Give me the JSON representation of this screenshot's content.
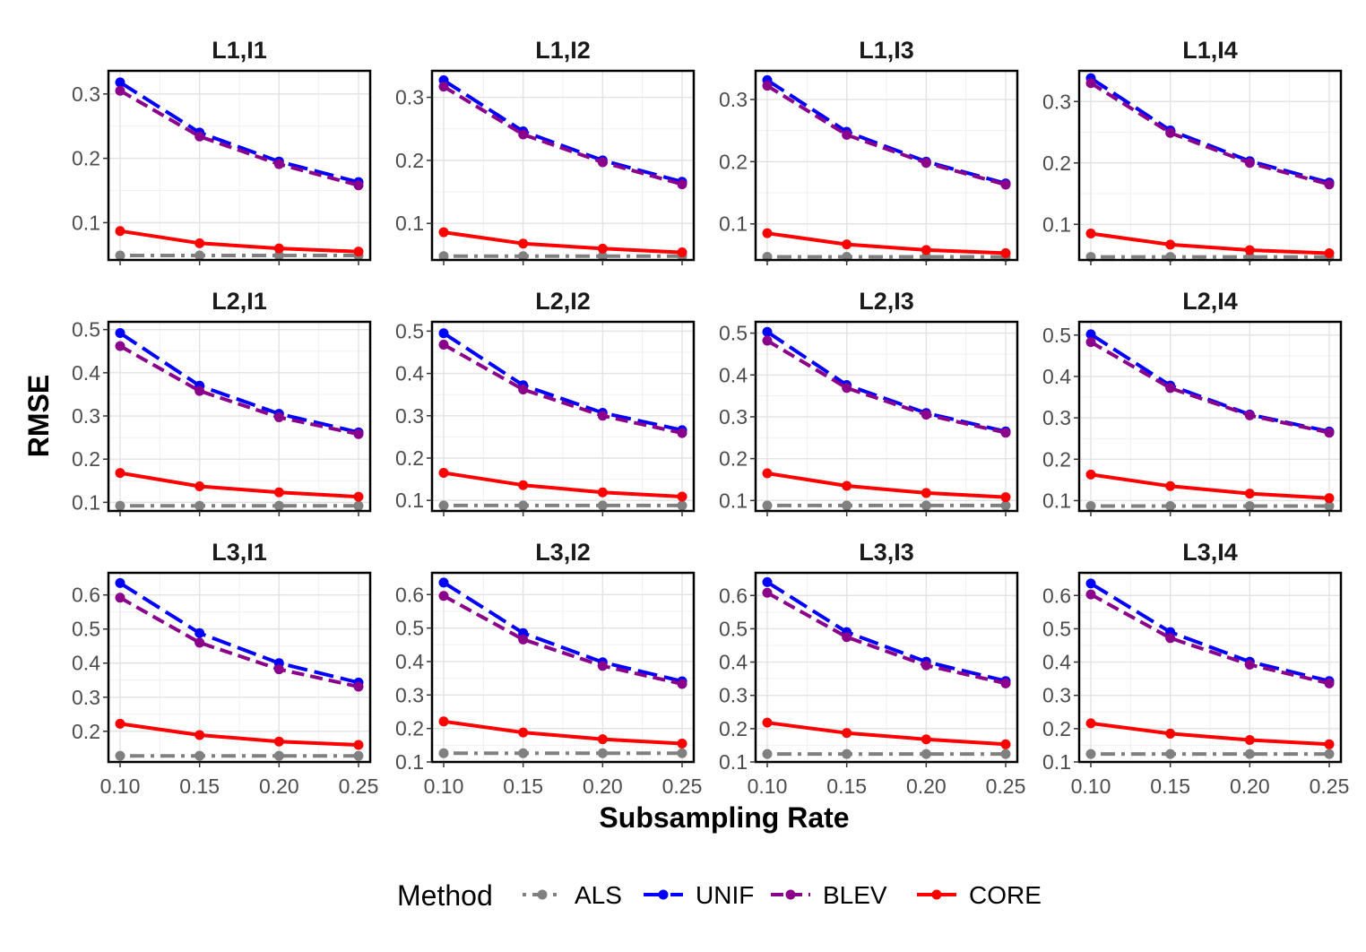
{
  "chart_data": {
    "type": "line",
    "xlabel": "Subsampling Rate",
    "ylabel": "RMSE",
    "x": [
      0.1,
      0.15,
      0.2,
      0.25
    ],
    "x_tick_labels": [
      "0.10",
      "0.15",
      "0.20",
      "0.25"
    ],
    "legend": {
      "title": "Method",
      "position": "bottom",
      "entries": [
        "ALS",
        "UNIF",
        "BLEV",
        "CORE"
      ]
    },
    "series_styles": [
      {
        "name": "ALS",
        "color": "#808080",
        "dash": "dot-dash"
      },
      {
        "name": "UNIF",
        "color": "#0000ff",
        "dash": "long-dash"
      },
      {
        "name": "BLEV",
        "color": "#8b008b",
        "dash": "dash"
      },
      {
        "name": "CORE",
        "color": "#ff0000",
        "dash": "solid"
      }
    ],
    "grid": true,
    "panels": [
      {
        "title": "L1,I1",
        "ylim": [
          0.042,
          0.336
        ],
        "yticks": [
          0.1,
          0.2,
          0.3
        ],
        "ytick_labels": [
          "0.1",
          "0.2",
          "0.3"
        ],
        "series": [
          {
            "name": "ALS",
            "values": [
              0.049,
              0.049,
              0.049,
              0.049
            ]
          },
          {
            "name": "UNIF",
            "values": [
              0.318,
              0.24,
              0.195,
              0.163
            ]
          },
          {
            "name": "BLEV",
            "values": [
              0.305,
              0.234,
              0.191,
              0.158
            ]
          },
          {
            "name": "CORE",
            "values": [
              0.087,
              0.068,
              0.06,
              0.055
            ]
          }
        ]
      },
      {
        "title": "L1,I2",
        "ylim": [
          0.042,
          0.342
        ],
        "yticks": [
          0.1,
          0.2,
          0.3
        ],
        "ytick_labels": [
          "0.1",
          "0.2",
          "0.3"
        ],
        "series": [
          {
            "name": "ALS",
            "values": [
              0.048,
              0.048,
              0.048,
              0.048
            ]
          },
          {
            "name": "UNIF",
            "values": [
              0.327,
              0.246,
              0.2,
              0.166
            ]
          },
          {
            "name": "BLEV",
            "values": [
              0.317,
              0.241,
              0.197,
              0.162
            ]
          },
          {
            "name": "CORE",
            "values": [
              0.086,
              0.068,
              0.06,
              0.054
            ]
          }
        ]
      },
      {
        "title": "L1,I3",
        "ylim": [
          0.042,
          0.346
        ],
        "yticks": [
          0.1,
          0.2,
          0.3
        ],
        "ytick_labels": [
          "0.1",
          "0.2",
          "0.3"
        ],
        "series": [
          {
            "name": "ALS",
            "values": [
              0.047,
              0.047,
              0.047,
              0.047
            ]
          },
          {
            "name": "UNIF",
            "values": [
              0.331,
              0.248,
              0.2,
              0.165
            ]
          },
          {
            "name": "BLEV",
            "values": [
              0.322,
              0.243,
              0.198,
              0.163
            ]
          },
          {
            "name": "CORE",
            "values": [
              0.085,
              0.067,
              0.058,
              0.053
            ]
          }
        ]
      },
      {
        "title": "L1,I4",
        "ylim": [
          0.042,
          0.35
        ],
        "yticks": [
          0.1,
          0.2,
          0.3
        ],
        "ytick_labels": [
          "0.1",
          "0.2",
          "0.3"
        ],
        "series": [
          {
            "name": "ALS",
            "values": [
              0.047,
              0.047,
              0.047,
              0.047
            ]
          },
          {
            "name": "UNIF",
            "values": [
              0.338,
              0.253,
              0.203,
              0.168
            ]
          },
          {
            "name": "BLEV",
            "values": [
              0.33,
              0.249,
              0.2,
              0.165
            ]
          },
          {
            "name": "CORE",
            "values": [
              0.085,
              0.067,
              0.058,
              0.053
            ]
          }
        ]
      },
      {
        "title": "L2,I1",
        "ylim": [
          0.08,
          0.518
        ],
        "yticks": [
          0.1,
          0.2,
          0.3,
          0.4,
          0.5
        ],
        "ytick_labels": [
          "0.1",
          "0.2",
          "0.3",
          "0.4",
          "0.5"
        ],
        "series": [
          {
            "name": "ALS",
            "values": [
              0.092,
              0.092,
              0.092,
              0.092
            ]
          },
          {
            "name": "UNIF",
            "values": [
              0.492,
              0.37,
              0.305,
              0.262
            ]
          },
          {
            "name": "BLEV",
            "values": [
              0.462,
              0.358,
              0.297,
              0.258
            ]
          },
          {
            "name": "CORE",
            "values": [
              0.168,
              0.137,
              0.123,
              0.113
            ]
          }
        ]
      },
      {
        "title": "L2,I2",
        "ylim": [
          0.075,
          0.522
        ],
        "yticks": [
          0.1,
          0.2,
          0.3,
          0.4,
          0.5
        ],
        "ytick_labels": [
          "0.1",
          "0.2",
          "0.3",
          "0.4",
          "0.5"
        ],
        "series": [
          {
            "name": "ALS",
            "values": [
              0.088,
              0.088,
              0.088,
              0.088
            ]
          },
          {
            "name": "UNIF",
            "values": [
              0.495,
              0.372,
              0.307,
              0.266
            ]
          },
          {
            "name": "BLEV",
            "values": [
              0.468,
              0.362,
              0.3,
              0.259
            ]
          },
          {
            "name": "CORE",
            "values": [
              0.165,
              0.136,
              0.119,
              0.109
            ]
          }
        ]
      },
      {
        "title": "L2,I3",
        "ylim": [
          0.075,
          0.527
        ],
        "yticks": [
          0.1,
          0.2,
          0.3,
          0.4,
          0.5
        ],
        "ytick_labels": [
          "0.1",
          "0.2",
          "0.3",
          "0.4",
          "0.5"
        ],
        "series": [
          {
            "name": "ALS",
            "values": [
              0.088,
              0.088,
              0.088,
              0.088
            ]
          },
          {
            "name": "UNIF",
            "values": [
              0.503,
              0.376,
              0.309,
              0.265
            ]
          },
          {
            "name": "BLEV",
            "values": [
              0.482,
              0.369,
              0.305,
              0.262
            ]
          },
          {
            "name": "CORE",
            "values": [
              0.165,
              0.135,
              0.118,
              0.108
            ]
          }
        ]
      },
      {
        "title": "L2,I4",
        "ylim": [
          0.075,
          0.532
        ],
        "yticks": [
          0.1,
          0.2,
          0.3,
          0.4,
          0.5
        ],
        "ytick_labels": [
          "0.1",
          "0.2",
          "0.3",
          "0.4",
          "0.5"
        ],
        "series": [
          {
            "name": "ALS",
            "values": [
              0.087,
              0.087,
              0.087,
              0.087
            ]
          },
          {
            "name": "UNIF",
            "values": [
              0.502,
              0.378,
              0.308,
              0.267
            ]
          },
          {
            "name": "BLEV",
            "values": [
              0.483,
              0.372,
              0.306,
              0.264
            ]
          },
          {
            "name": "CORE",
            "values": [
              0.163,
              0.135,
              0.117,
              0.106
            ]
          }
        ]
      },
      {
        "title": "L3,I1",
        "ylim": [
          0.11,
          0.665
        ],
        "yticks": [
          0.2,
          0.3,
          0.4,
          0.5,
          0.6
        ],
        "ytick_labels": [
          "0.2",
          "0.3",
          "0.4",
          "0.5",
          "0.6"
        ],
        "series": [
          {
            "name": "ALS",
            "values": [
              0.128,
              0.128,
              0.128,
              0.128
            ]
          },
          {
            "name": "UNIF",
            "values": [
              0.635,
              0.488,
              0.4,
              0.343
            ]
          },
          {
            "name": "BLEV",
            "values": [
              0.592,
              0.46,
              0.382,
              0.331
            ]
          },
          {
            "name": "CORE",
            "values": [
              0.222,
              0.189,
              0.17,
              0.16
            ]
          }
        ]
      },
      {
        "title": "L3,I2",
        "ylim": [
          0.1,
          0.665
        ],
        "yticks": [
          0.1,
          0.2,
          0.3,
          0.4,
          0.5,
          0.6
        ],
        "ytick_labels": [
          "0.1",
          "0.2",
          "0.3",
          "0.4",
          "0.5",
          "0.6"
        ],
        "series": [
          {
            "name": "ALS",
            "values": [
              0.126,
              0.126,
              0.126,
              0.126
            ]
          },
          {
            "name": "UNIF",
            "values": [
              0.636,
              0.485,
              0.398,
              0.341
            ]
          },
          {
            "name": "BLEV",
            "values": [
              0.596,
              0.466,
              0.387,
              0.333
            ]
          },
          {
            "name": "CORE",
            "values": [
              0.221,
              0.188,
              0.168,
              0.155
            ]
          }
        ]
      },
      {
        "title": "L3,I3",
        "ylim": [
          0.1,
          0.668
        ],
        "yticks": [
          0.1,
          0.2,
          0.3,
          0.4,
          0.5,
          0.6
        ],
        "ytick_labels": [
          "0.1",
          "0.2",
          "0.3",
          "0.4",
          "0.5",
          "0.6"
        ],
        "series": [
          {
            "name": "ALS",
            "values": [
              0.124,
              0.124,
              0.124,
              0.124
            ]
          },
          {
            "name": "UNIF",
            "values": [
              0.64,
              0.49,
              0.401,
              0.343
            ]
          },
          {
            "name": "BLEV",
            "values": [
              0.608,
              0.475,
              0.39,
              0.336
            ]
          },
          {
            "name": "CORE",
            "values": [
              0.218,
              0.187,
              0.168,
              0.153
            ]
          }
        ]
      },
      {
        "title": "L3,I4",
        "ylim": [
          0.1,
          0.668
        ],
        "yticks": [
          0.1,
          0.2,
          0.3,
          0.4,
          0.5,
          0.6
        ],
        "ytick_labels": [
          "0.1",
          "0.2",
          "0.3",
          "0.4",
          "0.5",
          "0.6"
        ],
        "series": [
          {
            "name": "ALS",
            "values": [
              0.124,
              0.124,
              0.124,
              0.124
            ]
          },
          {
            "name": "UNIF",
            "values": [
              0.636,
              0.49,
              0.401,
              0.343
            ]
          },
          {
            "name": "BLEV",
            "values": [
              0.603,
              0.472,
              0.392,
              0.336
            ]
          },
          {
            "name": "CORE",
            "values": [
              0.216,
              0.185,
              0.166,
              0.153
            ]
          }
        ]
      }
    ]
  }
}
